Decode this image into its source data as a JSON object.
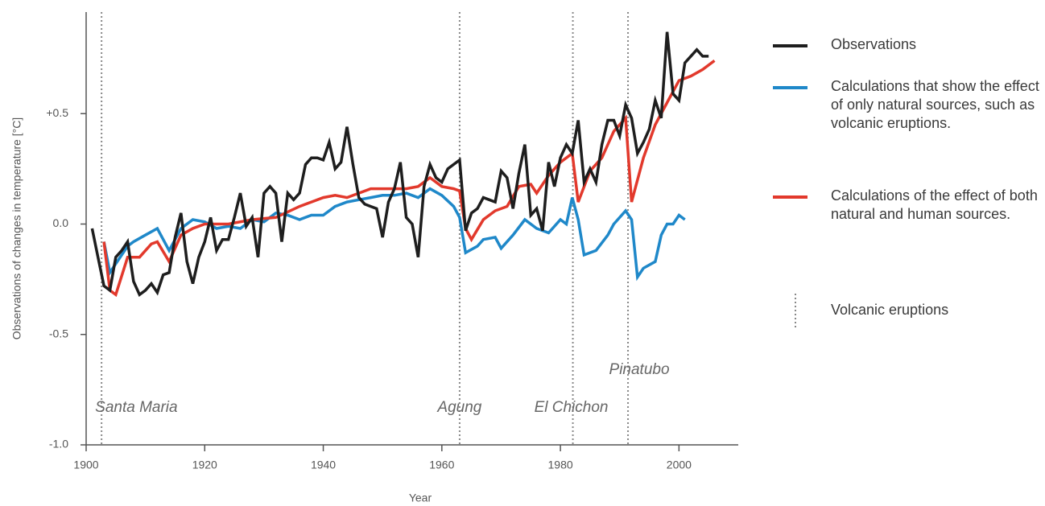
{
  "chart_data": {
    "type": "line",
    "xlabel": "Year",
    "ylabel": "Observations of changes in temperature [°C]",
    "xlim": [
      1900,
      2010
    ],
    "ylim": [
      -1.0,
      0.96
    ],
    "xticks": [
      1900,
      1920,
      1940,
      1960,
      1980,
      2000
    ],
    "yticks": [
      {
        "value": -1.0,
        "label": "-1.0"
      },
      -0.5,
      {
        "value": 0,
        "label": "0.0"
      },
      {
        "value": 0.5,
        "label": "+0.5"
      }
    ],
    "series": [
      {
        "name": "Observations",
        "color": "#1e1e1e",
        "x": [
          1901,
          1902,
          1903,
          1904,
          1905,
          1906,
          1907,
          1908,
          1909,
          1910,
          1911,
          1912,
          1913,
          1914,
          1915,
          1916,
          1917,
          1918,
          1919,
          1920,
          1921,
          1922,
          1923,
          1924,
          1925,
          1926,
          1927,
          1928,
          1929,
          1930,
          1931,
          1932,
          1933,
          1934,
          1935,
          1936,
          1937,
          1938,
          1939,
          1940,
          1941,
          1942,
          1943,
          1944,
          1945,
          1946,
          1947,
          1948,
          1949,
          1950,
          1951,
          1952,
          1953,
          1954,
          1955,
          1956,
          1957,
          1958,
          1959,
          1960,
          1961,
          1962,
          1963,
          1964,
          1965,
          1966,
          1967,
          1968,
          1969,
          1970,
          1971,
          1972,
          1973,
          1974,
          1975,
          1976,
          1977,
          1978,
          1979,
          1980,
          1981,
          1982,
          1983,
          1984,
          1985,
          1986,
          1987,
          1988,
          1989,
          1990,
          1991,
          1992,
          1993,
          1994,
          1995,
          1996,
          1997,
          1998,
          1999,
          2000,
          2001,
          2002,
          2003,
          2004,
          2005
        ],
        "values": [
          -0.02,
          -0.15,
          -0.28,
          -0.3,
          -0.15,
          -0.12,
          -0.08,
          -0.26,
          -0.32,
          -0.3,
          -0.27,
          -0.31,
          -0.23,
          -0.22,
          -0.06,
          0.05,
          -0.17,
          -0.27,
          -0.15,
          -0.08,
          0.03,
          -0.12,
          -0.07,
          -0.07,
          0.03,
          0.14,
          -0.01,
          0.03,
          -0.15,
          0.14,
          0.17,
          0.14,
          -0.08,
          0.14,
          0.11,
          0.14,
          0.27,
          0.3,
          0.3,
          0.29,
          0.37,
          0.25,
          0.28,
          0.44,
          0.27,
          0.12,
          0.09,
          0.08,
          0.07,
          -0.06,
          0.1,
          0.16,
          0.28,
          0.03,
          0.0,
          -0.15,
          0.17,
          0.27,
          0.21,
          0.19,
          0.25,
          0.27,
          0.29,
          -0.03,
          0.05,
          0.07,
          0.12,
          0.11,
          0.1,
          0.24,
          0.21,
          0.07,
          0.23,
          0.36,
          0.04,
          0.07,
          -0.03,
          0.28,
          0.17,
          0.3,
          0.36,
          0.32,
          0.47,
          0.19,
          0.25,
          0.19,
          0.36,
          0.47,
          0.47,
          0.4,
          0.54,
          0.48,
          0.32,
          0.37,
          0.43,
          0.56,
          0.48,
          0.87,
          0.59,
          0.56,
          0.73,
          0.76,
          0.79,
          0.76,
          0.76
        ]
      },
      {
        "name": "Calculations that show the effect of only natural sources, such as volcanic eruptions.",
        "color": "#1f88c9",
        "x": [
          1903,
          1904,
          1905,
          1907,
          1908,
          1910,
          1912,
          1914,
          1916,
          1918,
          1920,
          1922,
          1924,
          1926,
          1928,
          1930,
          1932,
          1934,
          1936,
          1938,
          1940,
          1942,
          1944,
          1946,
          1948,
          1950,
          1952,
          1954,
          1956,
          1958,
          1960,
          1962,
          1963,
          1964,
          1966,
          1967,
          1969,
          1970,
          1972,
          1974,
          1976,
          1978,
          1980,
          1981,
          1982,
          1983,
          1984,
          1986,
          1988,
          1989,
          1991,
          1992,
          1993,
          1994,
          1996,
          1997,
          1998,
          1999,
          2000,
          2001
        ],
        "values": [
          -0.08,
          -0.22,
          -0.18,
          -0.1,
          -0.08,
          -0.05,
          -0.02,
          -0.12,
          -0.02,
          0.02,
          0.01,
          -0.02,
          -0.01,
          -0.02,
          0.02,
          0.01,
          0.05,
          0.04,
          0.02,
          0.04,
          0.04,
          0.08,
          0.1,
          0.11,
          0.12,
          0.13,
          0.13,
          0.14,
          0.12,
          0.16,
          0.13,
          0.08,
          0.03,
          -0.13,
          -0.1,
          -0.07,
          -0.06,
          -0.11,
          -0.05,
          0.02,
          -0.02,
          -0.04,
          0.02,
          0.0,
          0.12,
          0.02,
          -0.14,
          -0.12,
          -0.05,
          0.0,
          0.06,
          0.02,
          -0.24,
          -0.2,
          -0.17,
          -0.05,
          0.0,
          0.0,
          0.04,
          0.02
        ]
      },
      {
        "name": "Calculations of the effect of both natural and human sources.",
        "color": "#e2392c",
        "x": [
          1903,
          1904,
          1905,
          1907,
          1909,
          1911,
          1912,
          1914,
          1916,
          1918,
          1920,
          1924,
          1928,
          1932,
          1936,
          1938,
          1940,
          1942,
          1944,
          1946,
          1948,
          1950,
          1954,
          1956,
          1958,
          1960,
          1962,
          1963,
          1964,
          1965,
          1967,
          1969,
          1971,
          1973,
          1975,
          1976,
          1978,
          1980,
          1982,
          1983,
          1985,
          1987,
          1989,
          1991,
          1992,
          1994,
          1996,
          1998,
          2000,
          2002,
          2004,
          2006
        ],
        "values": [
          -0.08,
          -0.3,
          -0.32,
          -0.15,
          -0.15,
          -0.09,
          -0.08,
          -0.17,
          -0.05,
          -0.02,
          0.0,
          0.0,
          0.02,
          0.03,
          0.08,
          0.1,
          0.12,
          0.13,
          0.12,
          0.14,
          0.16,
          0.16,
          0.16,
          0.17,
          0.21,
          0.17,
          0.16,
          0.15,
          -0.02,
          -0.07,
          0.02,
          0.06,
          0.08,
          0.17,
          0.18,
          0.14,
          0.22,
          0.28,
          0.32,
          0.1,
          0.24,
          0.3,
          0.42,
          0.48,
          0.1,
          0.3,
          0.45,
          0.55,
          0.65,
          0.67,
          0.7,
          0.74
        ]
      }
    ],
    "eruptions": [
      {
        "name": "Santa Maria",
        "year": 1902.6
      },
      {
        "name": "Agung",
        "year": 1963
      },
      {
        "name": "El Chichon",
        "year": 1982.1
      },
      {
        "name": "Pinatubo",
        "year": 1991.4
      }
    ],
    "eruption_legend": "Volcanic eruptions"
  }
}
